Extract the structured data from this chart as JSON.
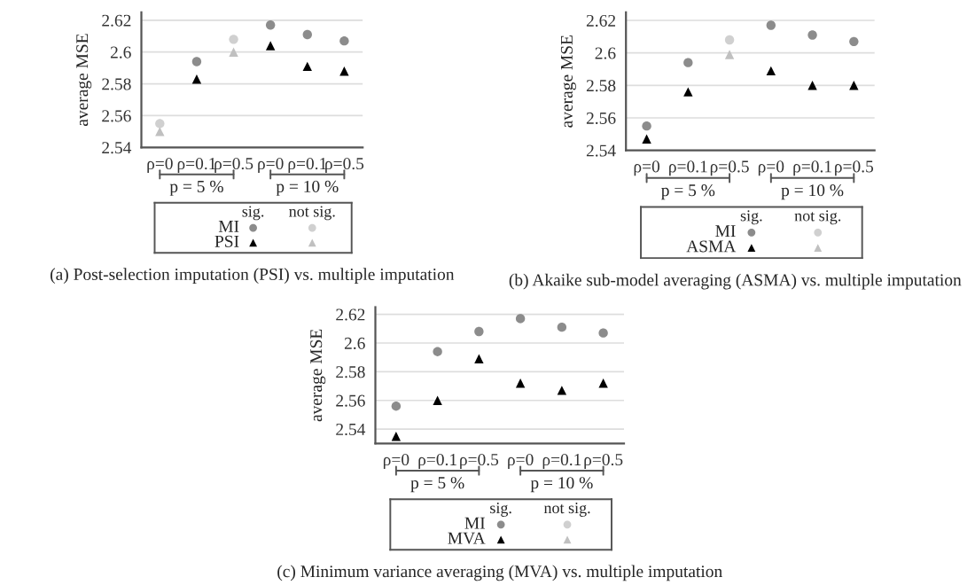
{
  "chart_data": [
    {
      "type": "scatter",
      "title": "(a) Post-selection imputation (PSI) vs. multiple imputation",
      "ylabel": "average MSE",
      "categories": [
        "ρ=0",
        "ρ=0.1",
        "ρ=0.5",
        "ρ=0",
        "ρ=0.1",
        "ρ=0.5"
      ],
      "ylim": [
        2.54,
        2.625
      ],
      "yticks": [
        2.54,
        2.56,
        2.58,
        2.6,
        2.62
      ],
      "grid": "y",
      "legend": "bottom",
      "annotations": [
        "sig.",
        "not sig.",
        "p = 5 %",
        "p = 10 %"
      ],
      "series": [
        {
          "name": "MI",
          "color": "#8c8c8c",
          "marker": "circle",
          "values": [
            null,
            2.594,
            null,
            2.617,
            2.611,
            2.607
          ]
        },
        {
          "color": "#d0d0d0",
          "marker": "circle",
          "values": [
            2.555,
            null,
            2.608,
            null,
            null,
            null
          ]
        },
        {
          "name": "PSI",
          "color": "#000000",
          "marker": "triangle",
          "values": [
            null,
            2.583,
            null,
            2.604,
            2.591,
            2.588
          ]
        },
        {
          "color": "#c0c0c0",
          "marker": "triangle",
          "values": [
            2.55,
            null,
            2.6,
            null,
            null,
            null
          ]
        }
      ]
    },
    {
      "type": "scatter",
      "title": "(b) Akaike sub-model averaging (ASMA) vs. multiple imputation",
      "ylabel": "average MSE",
      "categories": [
        "ρ=0",
        "ρ=0.1",
        "ρ=0.5",
        "ρ=0",
        "ρ=0.1",
        "ρ=0.5"
      ],
      "ylim": [
        2.54,
        2.625
      ],
      "yticks": [
        2.54,
        2.56,
        2.58,
        2.6,
        2.62
      ],
      "grid": "y",
      "legend": "bottom",
      "annotations": [
        "sig.",
        "not sig.",
        "p = 5 %",
        "p = 10 %"
      ],
      "series": [
        {
          "name": "MI",
          "color": "#8c8c8c",
          "marker": "circle",
          "values": [
            2.555,
            2.594,
            null,
            2.617,
            2.611,
            2.607
          ]
        },
        {
          "color": "#d0d0d0",
          "marker": "circle",
          "values": [
            null,
            null,
            2.608,
            null,
            null,
            null
          ]
        },
        {
          "name": "ASMA",
          "color": "#000000",
          "marker": "triangle",
          "values": [
            2.547,
            2.576,
            null,
            2.589,
            2.58,
            2.58
          ]
        },
        {
          "color": "#c0c0c0",
          "marker": "triangle",
          "values": [
            null,
            null,
            2.599,
            null,
            null,
            null
          ]
        }
      ]
    },
    {
      "type": "scatter",
      "title": "(c) Minimum variance averaging (MVA) vs. multiple imputation",
      "ylabel": "average MSE",
      "categories": [
        "ρ=0",
        "ρ=0.1",
        "ρ=0.5",
        "ρ=0",
        "ρ=0.1",
        "ρ=0.5"
      ],
      "ylim": [
        2.53,
        2.625
      ],
      "yticks": [
        2.54,
        2.56,
        2.58,
        2.6,
        2.62
      ],
      "grid": "y",
      "legend": "bottom",
      "annotations": [
        "sig.",
        "not sig.",
        "p = 5 %",
        "p = 10 %"
      ],
      "series": [
        {
          "name": "MI",
          "color": "#8c8c8c",
          "marker": "circle",
          "values": [
            2.556,
            2.594,
            2.608,
            2.617,
            2.611,
            2.607
          ]
        },
        {
          "color": "#d0d0d0",
          "marker": "circle",
          "values": [
            null,
            null,
            null,
            null,
            null,
            null
          ]
        },
        {
          "name": "MVA",
          "color": "#000000",
          "marker": "triangle",
          "values": [
            2.535,
            2.56,
            2.589,
            2.572,
            2.567,
            2.572
          ]
        },
        {
          "color": "#c0c0c0",
          "marker": "triangle",
          "values": [
            null,
            null,
            null,
            null,
            null,
            null
          ]
        }
      ]
    }
  ]
}
